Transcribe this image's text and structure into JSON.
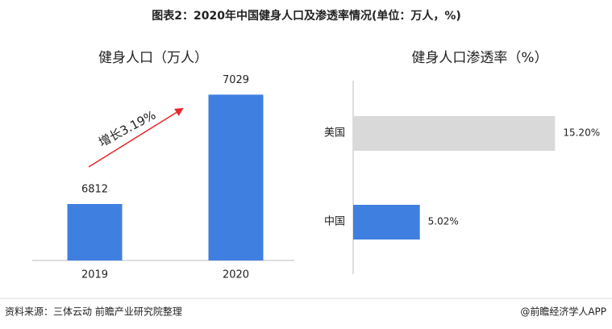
{
  "title": "图表2：2020年中国健身人口及渗透率情况(单位：万人，%)",
  "source": "资料来源：三体云动 前瞻产业研究院整理",
  "footer": "@前瞻经济学人APP",
  "chart_data": [
    {
      "type": "bar",
      "title": "健身人口（万人）",
      "categories": [
        "2019",
        "2020"
      ],
      "values": [
        6812,
        7029
      ],
      "color": "#3f7fe0",
      "ylim": [
        6700,
        7060
      ],
      "annotation": "增长3.19%",
      "annotation_color": "#e8262a"
    },
    {
      "type": "hbar",
      "title": "健身人口渗透率（%）",
      "categories": [
        "美国",
        "中国"
      ],
      "values": [
        15.2,
        5.02
      ],
      "value_labels": [
        "15.20%",
        "5.02%"
      ],
      "colors": [
        "#d9d9d9",
        "#3f7fe0"
      ],
      "xlim": [
        0,
        17
      ]
    }
  ]
}
